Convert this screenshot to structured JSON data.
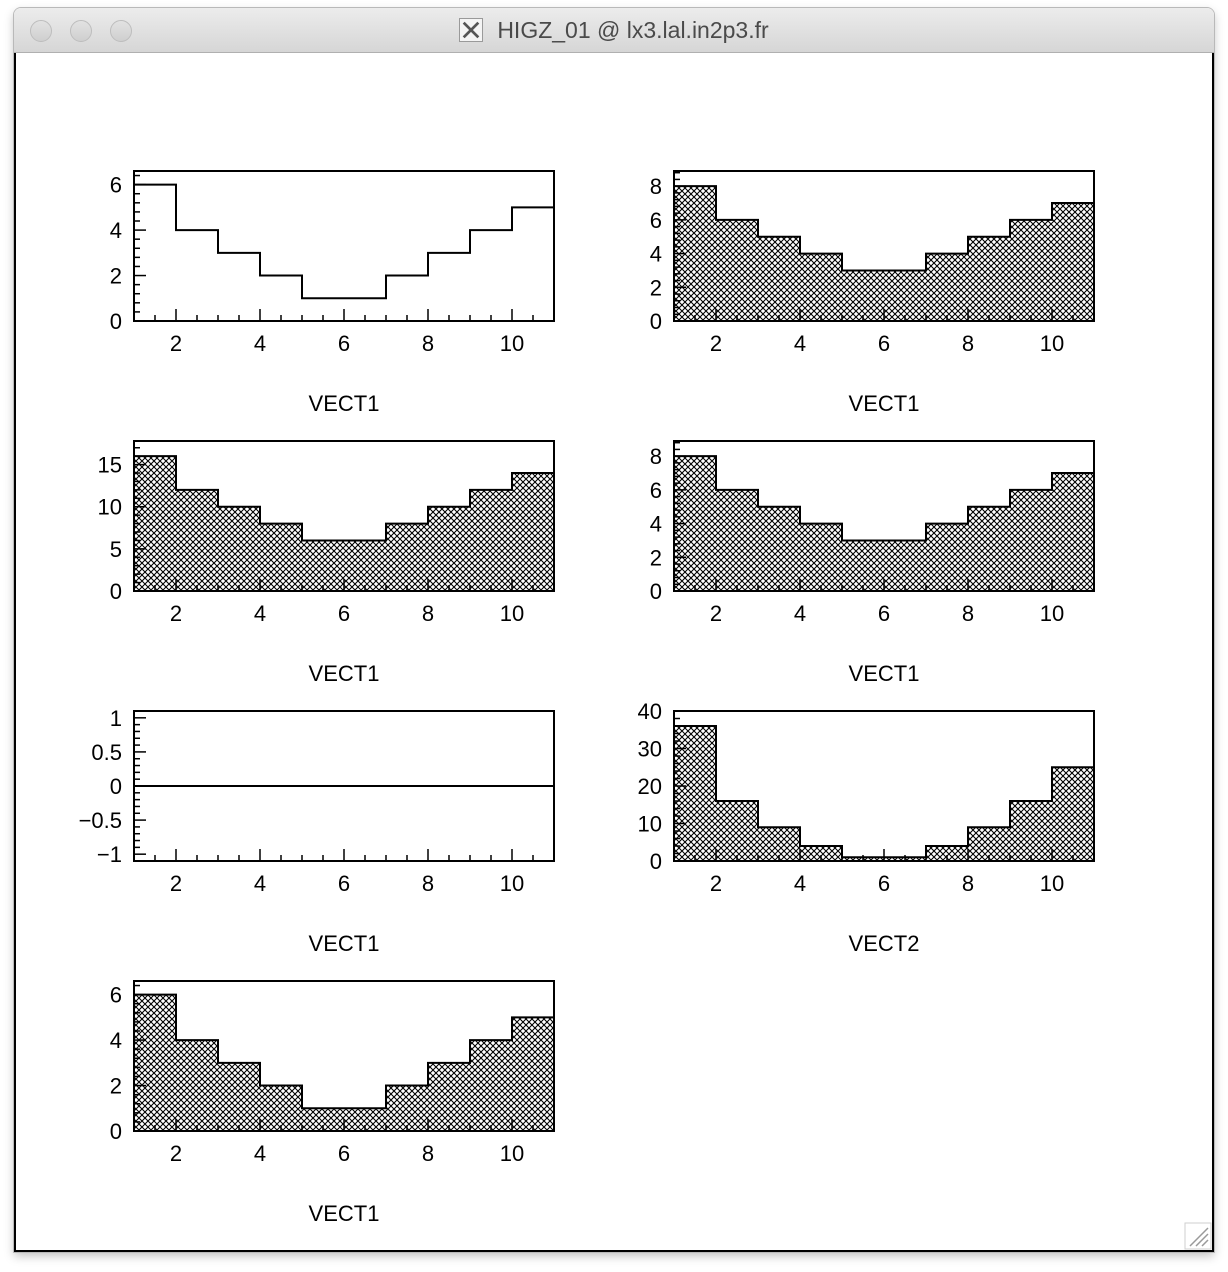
{
  "window": {
    "title": "HIGZ_01 @ lx3.lal.in2p3.fr"
  },
  "icons": {
    "app": "x11-icon",
    "resize": "resize-grip-icon",
    "buttons": [
      "close-button-icon",
      "minimize-button-icon",
      "zoom-button-icon"
    ]
  },
  "chart_data": [
    {
      "type": "bar",
      "style": "outline",
      "xlabel": "VECT1",
      "xlim": [
        1,
        11
      ],
      "ylim": [
        0,
        6.6
      ],
      "xticks": [
        2,
        4,
        6,
        8,
        10
      ],
      "yticks": [
        0,
        2,
        4,
        6
      ],
      "edges": [
        1,
        2,
        3,
        4,
        5,
        6,
        7,
        8,
        9,
        10,
        11
      ],
      "values": [
        6,
        4,
        3,
        2,
        1,
        1,
        2,
        3,
        4,
        5
      ]
    },
    {
      "type": "bar",
      "style": "hatched",
      "xlabel": "VECT1",
      "xlim": [
        1,
        11
      ],
      "ylim": [
        0,
        8.9
      ],
      "xticks": [
        2,
        4,
        6,
        8,
        10
      ],
      "yticks": [
        0,
        2,
        4,
        6,
        8
      ],
      "edges": [
        1,
        2,
        3,
        4,
        5,
        6,
        7,
        8,
        9,
        10,
        11
      ],
      "values": [
        8,
        6,
        5,
        4,
        3,
        3,
        4,
        5,
        6,
        7
      ]
    },
    {
      "type": "bar",
      "style": "hatched",
      "xlabel": "VECT1",
      "xlim": [
        1,
        11
      ],
      "ylim": [
        0,
        17.8
      ],
      "xticks": [
        2,
        4,
        6,
        8,
        10
      ],
      "yticks": [
        0,
        5,
        10,
        15
      ],
      "edges": [
        1,
        2,
        3,
        4,
        5,
        6,
        7,
        8,
        9,
        10,
        11
      ],
      "values": [
        16,
        12,
        10,
        8,
        6,
        6,
        8,
        10,
        12,
        14
      ]
    },
    {
      "type": "bar",
      "style": "hatched",
      "xlabel": "VECT1",
      "xlim": [
        1,
        11
      ],
      "ylim": [
        0,
        8.9
      ],
      "xticks": [
        2,
        4,
        6,
        8,
        10
      ],
      "yticks": [
        0,
        2,
        4,
        6,
        8
      ],
      "edges": [
        1,
        2,
        3,
        4,
        5,
        6,
        7,
        8,
        9,
        10,
        11
      ],
      "values": [
        8,
        6,
        5,
        4,
        3,
        3,
        4,
        5,
        6,
        7
      ]
    },
    {
      "type": "line",
      "style": "outline",
      "xlabel": "VECT1",
      "xlim": [
        1,
        11
      ],
      "ylim": [
        -1.1,
        1.1
      ],
      "xticks": [
        2,
        4,
        6,
        8,
        10
      ],
      "yticks": [
        -1,
        -0.5,
        0,
        0.5,
        1
      ],
      "ytick_labels": [
        "−1",
        "−0.5",
        "0",
        "0.5",
        "1"
      ],
      "edges": [
        1,
        2,
        3,
        4,
        5,
        6,
        7,
        8,
        9,
        10,
        11
      ],
      "values": [
        0,
        0,
        0,
        0,
        0,
        0,
        0,
        0,
        0,
        0
      ]
    },
    {
      "type": "bar",
      "style": "hatched",
      "xlabel": "VECT2",
      "xlim": [
        1,
        11
      ],
      "ylim": [
        0,
        40
      ],
      "xticks": [
        2,
        4,
        6,
        8,
        10
      ],
      "yticks": [
        0,
        10,
        20,
        30,
        40
      ],
      "edges": [
        1,
        2,
        3,
        4,
        5,
        6,
        7,
        8,
        9,
        10,
        11
      ],
      "values": [
        36,
        16,
        9,
        4,
        1,
        1,
        4,
        9,
        16,
        25
      ]
    },
    {
      "type": "bar",
      "style": "hatched",
      "xlabel": "VECT1",
      "xlim": [
        1,
        11
      ],
      "ylim": [
        0,
        6.6
      ],
      "xticks": [
        2,
        4,
        6,
        8,
        10
      ],
      "yticks": [
        0,
        2,
        4,
        6
      ],
      "edges": [
        1,
        2,
        3,
        4,
        5,
        6,
        7,
        8,
        9,
        10,
        11
      ],
      "values": [
        6,
        4,
        3,
        2,
        1,
        1,
        2,
        3,
        4,
        5
      ]
    }
  ]
}
